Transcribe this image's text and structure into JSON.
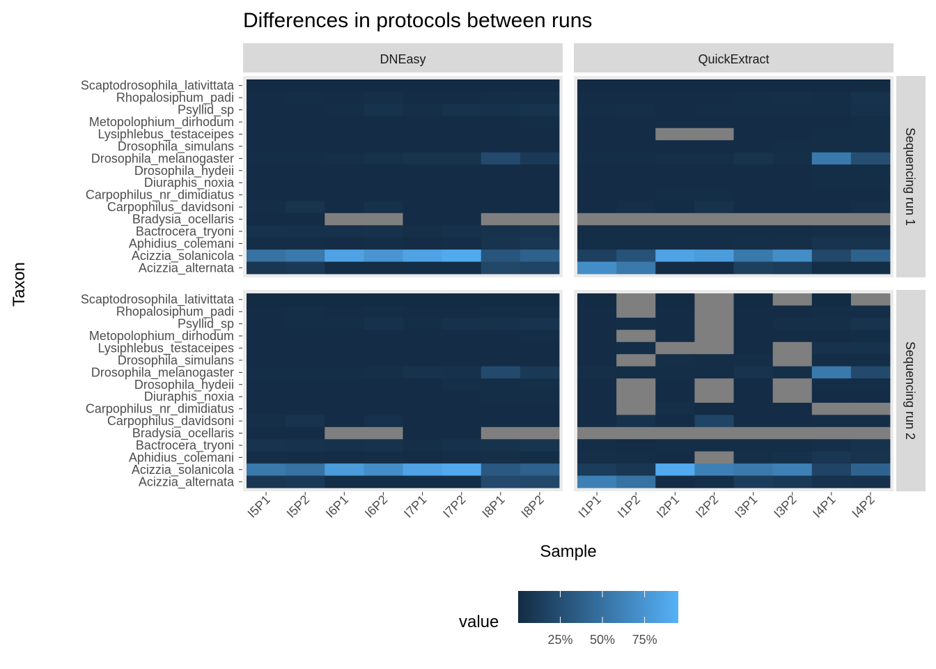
{
  "chart_data": {
    "type": "heatmap",
    "title": "Differences in protocols between runs",
    "xlabel": "Sample",
    "ylabel": "Taxon",
    "column_facets": [
      "DNEasy",
      "QuickExtract"
    ],
    "row_facets": [
      "Sequencing run 1",
      "Sequencing run 2"
    ],
    "x_by_facet": {
      "DNEasy": [
        "I5P1",
        "I5P2",
        "I6P1",
        "I6P2",
        "I7P1",
        "I7P2",
        "I8P1",
        "I8P2"
      ],
      "QuickExtract": [
        "I1P1",
        "I1P2",
        "I2P1",
        "I2P2",
        "I3P1",
        "I3P2",
        "I4P1",
        "I4P2"
      ]
    },
    "taxa": [
      "Scaptodrosophila_lativittata",
      "Rhopalosiphum_padi",
      "Psyllid_sp",
      "Metopolophium_dirhodum",
      "Lysiphlebus_testaceipes",
      "Drosophila_simulans",
      "Drosophila_melanogaster",
      "Drosophila_hydeii",
      "Diuraphis_noxia",
      "Carpophilus_nr_dimidiatus",
      "Carpophilus_davidsoni",
      "Bradysia_ocellaris",
      "Bactrocera_tryoni",
      "Aphidius_colemani",
      "Acizzia_solanicola",
      "Acizzia_alternata"
    ],
    "legend": {
      "title": "value",
      "position": "bottom",
      "ticks": [
        "25%",
        "50%",
        "75%"
      ],
      "tick_values": [
        0.25,
        0.5,
        0.75
      ],
      "range": [
        0.0,
        0.95
      ],
      "low_color": "#132B43",
      "high_color": "#56B1F7",
      "na_color": "#7F7F7F"
    },
    "panels": [
      {
        "col": "DNEasy",
        "row": "Sequencing run 1",
        "values": [
          [
            0.0,
            0.0,
            0.0,
            0.0,
            0.0,
            0.0,
            0.0,
            0.0
          ],
          [
            0.01,
            0.02,
            0.01,
            0.03,
            0.01,
            0.01,
            0.02,
            0.02
          ],
          [
            0.01,
            0.01,
            0.02,
            0.05,
            0.03,
            0.05,
            0.04,
            0.06
          ],
          [
            0.01,
            0.01,
            0.01,
            0.01,
            0.01,
            0.01,
            0.01,
            0.02
          ],
          [
            0.01,
            0.01,
            0.01,
            0.01,
            0.01,
            0.01,
            0.01,
            0.01
          ],
          [
            0.01,
            0.01,
            0.01,
            0.01,
            0.01,
            0.01,
            0.01,
            0.01
          ],
          [
            0.02,
            0.02,
            0.03,
            0.04,
            0.06,
            0.06,
            0.22,
            0.1
          ],
          [
            0.01,
            0.01,
            0.01,
            0.01,
            0.01,
            0.01,
            0.01,
            0.01
          ],
          [
            0.01,
            0.01,
            0.01,
            0.01,
            0.01,
            0.01,
            0.01,
            0.01
          ],
          [
            0.01,
            0.01,
            0.01,
            0.01,
            0.01,
            0.01,
            0.01,
            0.01
          ],
          [
            0.02,
            0.06,
            0.01,
            0.04,
            0.01,
            0.01,
            0.01,
            0.01
          ],
          [
            0.01,
            0.01,
            null,
            null,
            0.01,
            0.01,
            null,
            null
          ],
          [
            0.05,
            0.04,
            0.04,
            0.05,
            0.03,
            0.04,
            0.05,
            0.06
          ],
          [
            0.02,
            0.02,
            0.01,
            0.02,
            0.01,
            0.02,
            0.06,
            0.08
          ],
          [
            0.5,
            0.55,
            0.85,
            0.75,
            0.85,
            0.9,
            0.3,
            0.38
          ],
          [
            0.08,
            0.1,
            0.02,
            0.02,
            0.02,
            0.02,
            0.2,
            0.18
          ]
        ]
      },
      {
        "col": "QuickExtract",
        "row": "Sequencing run 1",
        "values": [
          [
            0.0,
            0.0,
            0.0,
            0.0,
            0.0,
            0.0,
            0.0,
            0.0
          ],
          [
            0.01,
            0.01,
            0.01,
            0.01,
            0.02,
            0.03,
            0.02,
            0.05
          ],
          [
            0.02,
            0.03,
            0.01,
            0.02,
            0.02,
            0.02,
            0.02,
            0.04
          ],
          [
            0.01,
            0.01,
            0.01,
            0.01,
            0.01,
            0.01,
            0.01,
            0.02
          ],
          [
            0.01,
            0.01,
            null,
            null,
            0.01,
            0.01,
            0.02,
            0.02
          ],
          [
            0.01,
            0.01,
            0.01,
            0.01,
            0.01,
            0.02,
            0.02,
            0.02
          ],
          [
            0.02,
            0.02,
            0.03,
            0.03,
            0.06,
            0.03,
            0.55,
            0.25
          ],
          [
            0.01,
            0.01,
            0.01,
            0.01,
            0.01,
            0.01,
            0.02,
            0.02
          ],
          [
            0.01,
            0.01,
            0.01,
            0.01,
            0.01,
            0.01,
            0.02,
            0.02
          ],
          [
            0.01,
            0.01,
            0.02,
            0.02,
            0.01,
            0.01,
            0.01,
            0.01
          ],
          [
            0.01,
            0.03,
            0.01,
            0.05,
            0.01,
            0.01,
            0.01,
            0.03
          ],
          [
            null,
            null,
            null,
            null,
            null,
            null,
            null,
            null
          ],
          [
            0.02,
            0.02,
            0.02,
            0.02,
            0.02,
            0.02,
            0.03,
            0.03
          ],
          [
            0.02,
            0.02,
            0.02,
            0.02,
            0.03,
            0.03,
            0.06,
            0.06
          ],
          [
            0.15,
            0.28,
            0.85,
            0.8,
            0.55,
            0.7,
            0.2,
            0.38
          ],
          [
            0.7,
            0.55,
            0.01,
            0.01,
            0.15,
            0.12,
            0.02,
            0.02
          ]
        ]
      },
      {
        "col": "DNEasy",
        "row": "Sequencing run 2",
        "values": [
          [
            0.0,
            0.0,
            0.0,
            0.0,
            0.0,
            0.0,
            0.0,
            0.0
          ],
          [
            0.01,
            0.02,
            0.01,
            0.02,
            0.01,
            0.01,
            0.02,
            0.02
          ],
          [
            0.01,
            0.02,
            0.02,
            0.04,
            0.02,
            0.04,
            0.04,
            0.06
          ],
          [
            0.01,
            0.01,
            0.01,
            0.01,
            0.01,
            0.01,
            0.01,
            0.02
          ],
          [
            0.01,
            0.01,
            0.01,
            0.01,
            0.01,
            0.01,
            0.01,
            0.01
          ],
          [
            0.01,
            0.01,
            0.01,
            0.01,
            0.01,
            0.01,
            0.01,
            0.01
          ],
          [
            0.02,
            0.02,
            0.02,
            0.03,
            0.05,
            0.04,
            0.22,
            0.1
          ],
          [
            0.01,
            0.01,
            0.01,
            0.01,
            0.01,
            0.03,
            0.02,
            0.03
          ],
          [
            0.01,
            0.01,
            0.01,
            0.01,
            0.01,
            0.01,
            0.02,
            0.02
          ],
          [
            0.01,
            0.01,
            0.01,
            0.01,
            0.01,
            0.01,
            0.01,
            0.01
          ],
          [
            0.03,
            0.06,
            0.01,
            0.04,
            0.01,
            0.01,
            0.01,
            0.01
          ],
          [
            0.01,
            0.01,
            null,
            null,
            0.01,
            0.01,
            null,
            null
          ],
          [
            0.06,
            0.05,
            0.04,
            0.05,
            0.03,
            0.04,
            0.05,
            0.07
          ],
          [
            0.02,
            0.02,
            0.01,
            0.02,
            0.01,
            0.02,
            0.03,
            0.02
          ],
          [
            0.55,
            0.5,
            0.8,
            0.7,
            0.85,
            0.9,
            0.32,
            0.38
          ],
          [
            0.08,
            0.1,
            0.02,
            0.02,
            0.02,
            0.02,
            0.22,
            0.2
          ]
        ]
      },
      {
        "col": "QuickExtract",
        "row": "Sequencing run 2",
        "values": [
          [
            0.0,
            null,
            0.0,
            null,
            0.0,
            null,
            0.0,
            null
          ],
          [
            0.01,
            null,
            0.01,
            null,
            0.01,
            0.01,
            0.02,
            0.02
          ],
          [
            0.01,
            0.02,
            0.01,
            null,
            0.01,
            0.03,
            0.03,
            0.06
          ],
          [
            0.01,
            null,
            0.01,
            null,
            0.01,
            0.01,
            0.01,
            0.02
          ],
          [
            0.01,
            0.02,
            null,
            null,
            0.01,
            null,
            0.05,
            0.05
          ],
          [
            0.01,
            null,
            0.03,
            0.02,
            0.03,
            null,
            0.02,
            0.02
          ],
          [
            0.03,
            0.02,
            0.02,
            0.02,
            0.06,
            0.03,
            0.55,
            0.22
          ],
          [
            0.01,
            null,
            0.01,
            null,
            0.01,
            null,
            0.02,
            0.02
          ],
          [
            0.01,
            null,
            0.01,
            null,
            0.01,
            null,
            0.01,
            0.01
          ],
          [
            0.01,
            null,
            0.03,
            0.01,
            0.01,
            0.01,
            null,
            null
          ],
          [
            0.01,
            0.05,
            0.01,
            0.18,
            0.01,
            0.01,
            0.02,
            0.02
          ],
          [
            null,
            null,
            null,
            null,
            null,
            null,
            null,
            null
          ],
          [
            0.02,
            0.01,
            0.02,
            0.02,
            0.02,
            0.02,
            0.03,
            0.05
          ],
          [
            0.03,
            0.02,
            0.01,
            null,
            0.03,
            0.04,
            0.08,
            0.06
          ],
          [
            0.12,
            0.08,
            0.9,
            0.6,
            0.55,
            0.6,
            0.18,
            0.4
          ],
          [
            0.6,
            0.5,
            0.01,
            0.03,
            0.12,
            0.1,
            0.05,
            0.04
          ]
        ]
      }
    ]
  }
}
